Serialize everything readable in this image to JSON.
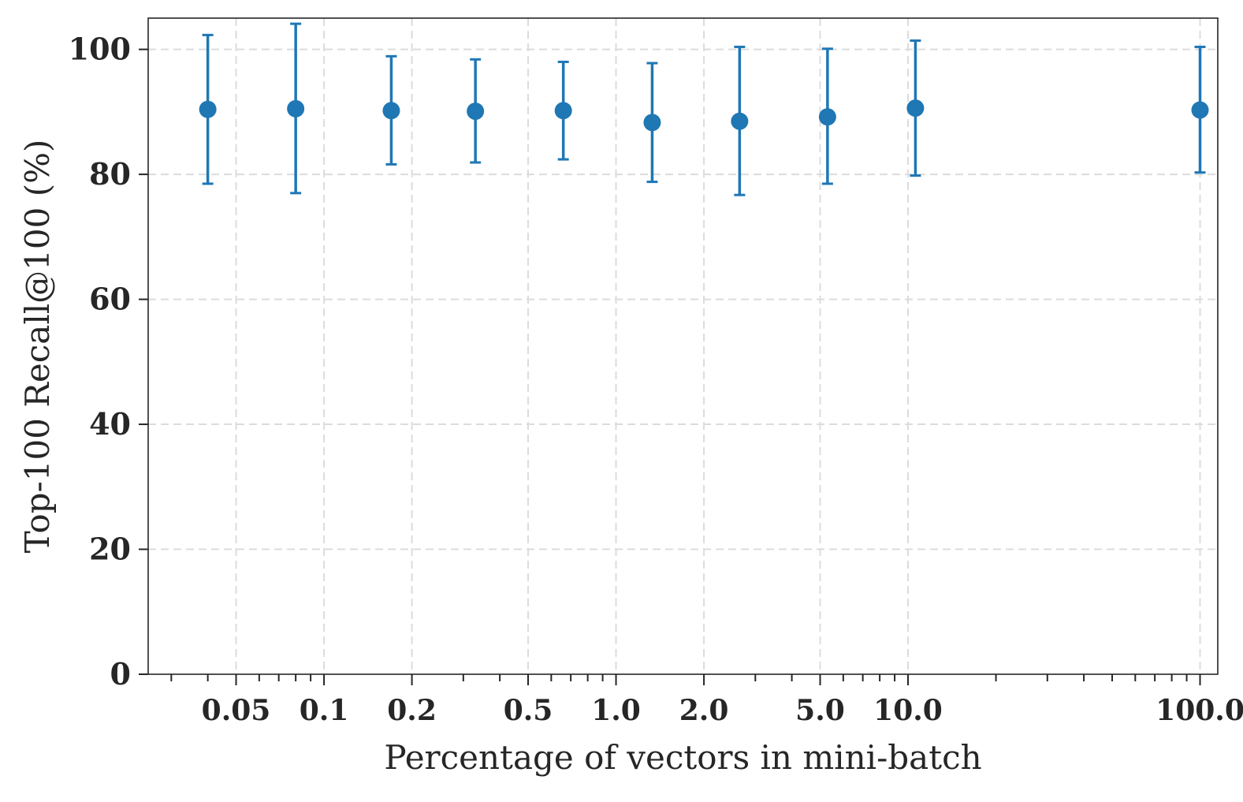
{
  "chart_data": {
    "type": "scatter",
    "title": "",
    "xlabel": "Percentage of vectors in mini-batch",
    "ylabel": "Top-100 Recall@100 (%)",
    "x_scale": "log",
    "xlim": [
      0.025,
      115
    ],
    "ylim": [
      0,
      105
    ],
    "x_tick_values": [
      0.05,
      0.1,
      0.2,
      0.5,
      1.0,
      2.0,
      5.0,
      10.0,
      100.0
    ],
    "x_tick_labels": [
      "0.05",
      "0.1",
      "0.2",
      "0.5",
      "1.0",
      "2.0",
      "5.0",
      "10.0",
      "100.0"
    ],
    "y_tick_values": [
      0,
      20,
      40,
      60,
      80,
      100
    ],
    "y_tick_labels": [
      "0",
      "20",
      "40",
      "60",
      "80",
      "100"
    ],
    "grid": true,
    "legend": "none",
    "series": [
      {
        "color": "#1f77b4",
        "points": [
          {
            "x": 0.04,
            "y": 90.4,
            "err_low": 78.5,
            "err_high": 102.3
          },
          {
            "x": 0.08,
            "y": 90.5,
            "err_low": 77.0,
            "err_high": 104.1
          },
          {
            "x": 0.17,
            "y": 90.2,
            "err_low": 81.6,
            "err_high": 98.9
          },
          {
            "x": 0.33,
            "y": 90.1,
            "err_low": 81.9,
            "err_high": 98.4
          },
          {
            "x": 0.66,
            "y": 90.2,
            "err_low": 82.4,
            "err_high": 98.0
          },
          {
            "x": 1.33,
            "y": 88.3,
            "err_low": 78.8,
            "err_high": 97.8
          },
          {
            "x": 2.65,
            "y": 88.5,
            "err_low": 76.7,
            "err_high": 100.4
          },
          {
            "x": 5.3,
            "y": 89.2,
            "err_low": 78.5,
            "err_high": 100.1
          },
          {
            "x": 10.6,
            "y": 90.6,
            "err_low": 79.8,
            "err_high": 101.4
          },
          {
            "x": 100.0,
            "y": 90.3,
            "err_low": 80.3,
            "err_high": 100.4
          }
        ]
      }
    ]
  }
}
